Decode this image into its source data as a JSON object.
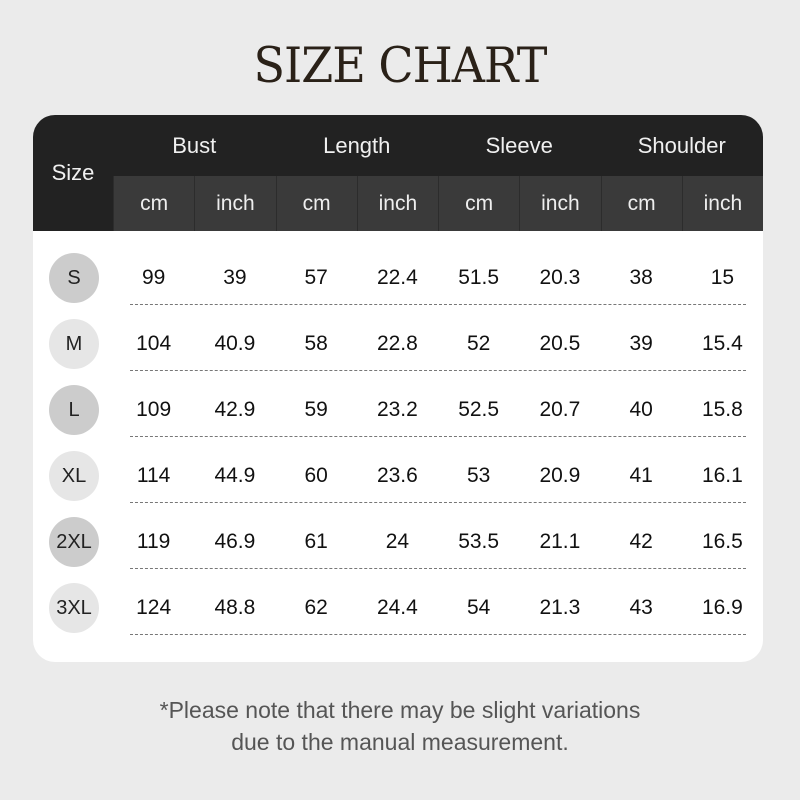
{
  "title": "SIZE CHART",
  "table": {
    "size_label": "Size",
    "groups": [
      "Bust",
      "Length",
      "Sleeve",
      "Shoulder"
    ],
    "units": [
      "cm",
      "inch",
      "cm",
      "inch",
      "cm",
      "inch",
      "cm",
      "inch"
    ],
    "rows": [
      {
        "size": "S",
        "values": [
          "99",
          "39",
          "57",
          "22.4",
          "51.5",
          "20.3",
          "38",
          "15"
        ]
      },
      {
        "size": "M",
        "values": [
          "104",
          "40.9",
          "58",
          "22.8",
          "52",
          "20.5",
          "39",
          "15.4"
        ]
      },
      {
        "size": "L",
        "values": [
          "109",
          "42.9",
          "59",
          "23.2",
          "52.5",
          "20.7",
          "40",
          "15.8"
        ]
      },
      {
        "size": "XL",
        "values": [
          "114",
          "44.9",
          "60",
          "23.6",
          "53",
          "20.9",
          "41",
          "16.1"
        ]
      },
      {
        "size": "2XL",
        "values": [
          "119",
          "46.9",
          "61",
          "24",
          "53.5",
          "21.1",
          "42",
          "16.5"
        ]
      },
      {
        "size": "3XL",
        "values": [
          "124",
          "48.8",
          "62",
          "24.4",
          "54",
          "21.3",
          "43",
          "16.9"
        ]
      }
    ]
  },
  "note": {
    "line1": "*Please note that there may be slight variations",
    "line2": "due to the manual measurement."
  },
  "colors": {
    "header": "#222222",
    "subheader": "#3a3a3a",
    "circle_dark": "#cccccc",
    "circle_light": "#e6e6e6"
  }
}
